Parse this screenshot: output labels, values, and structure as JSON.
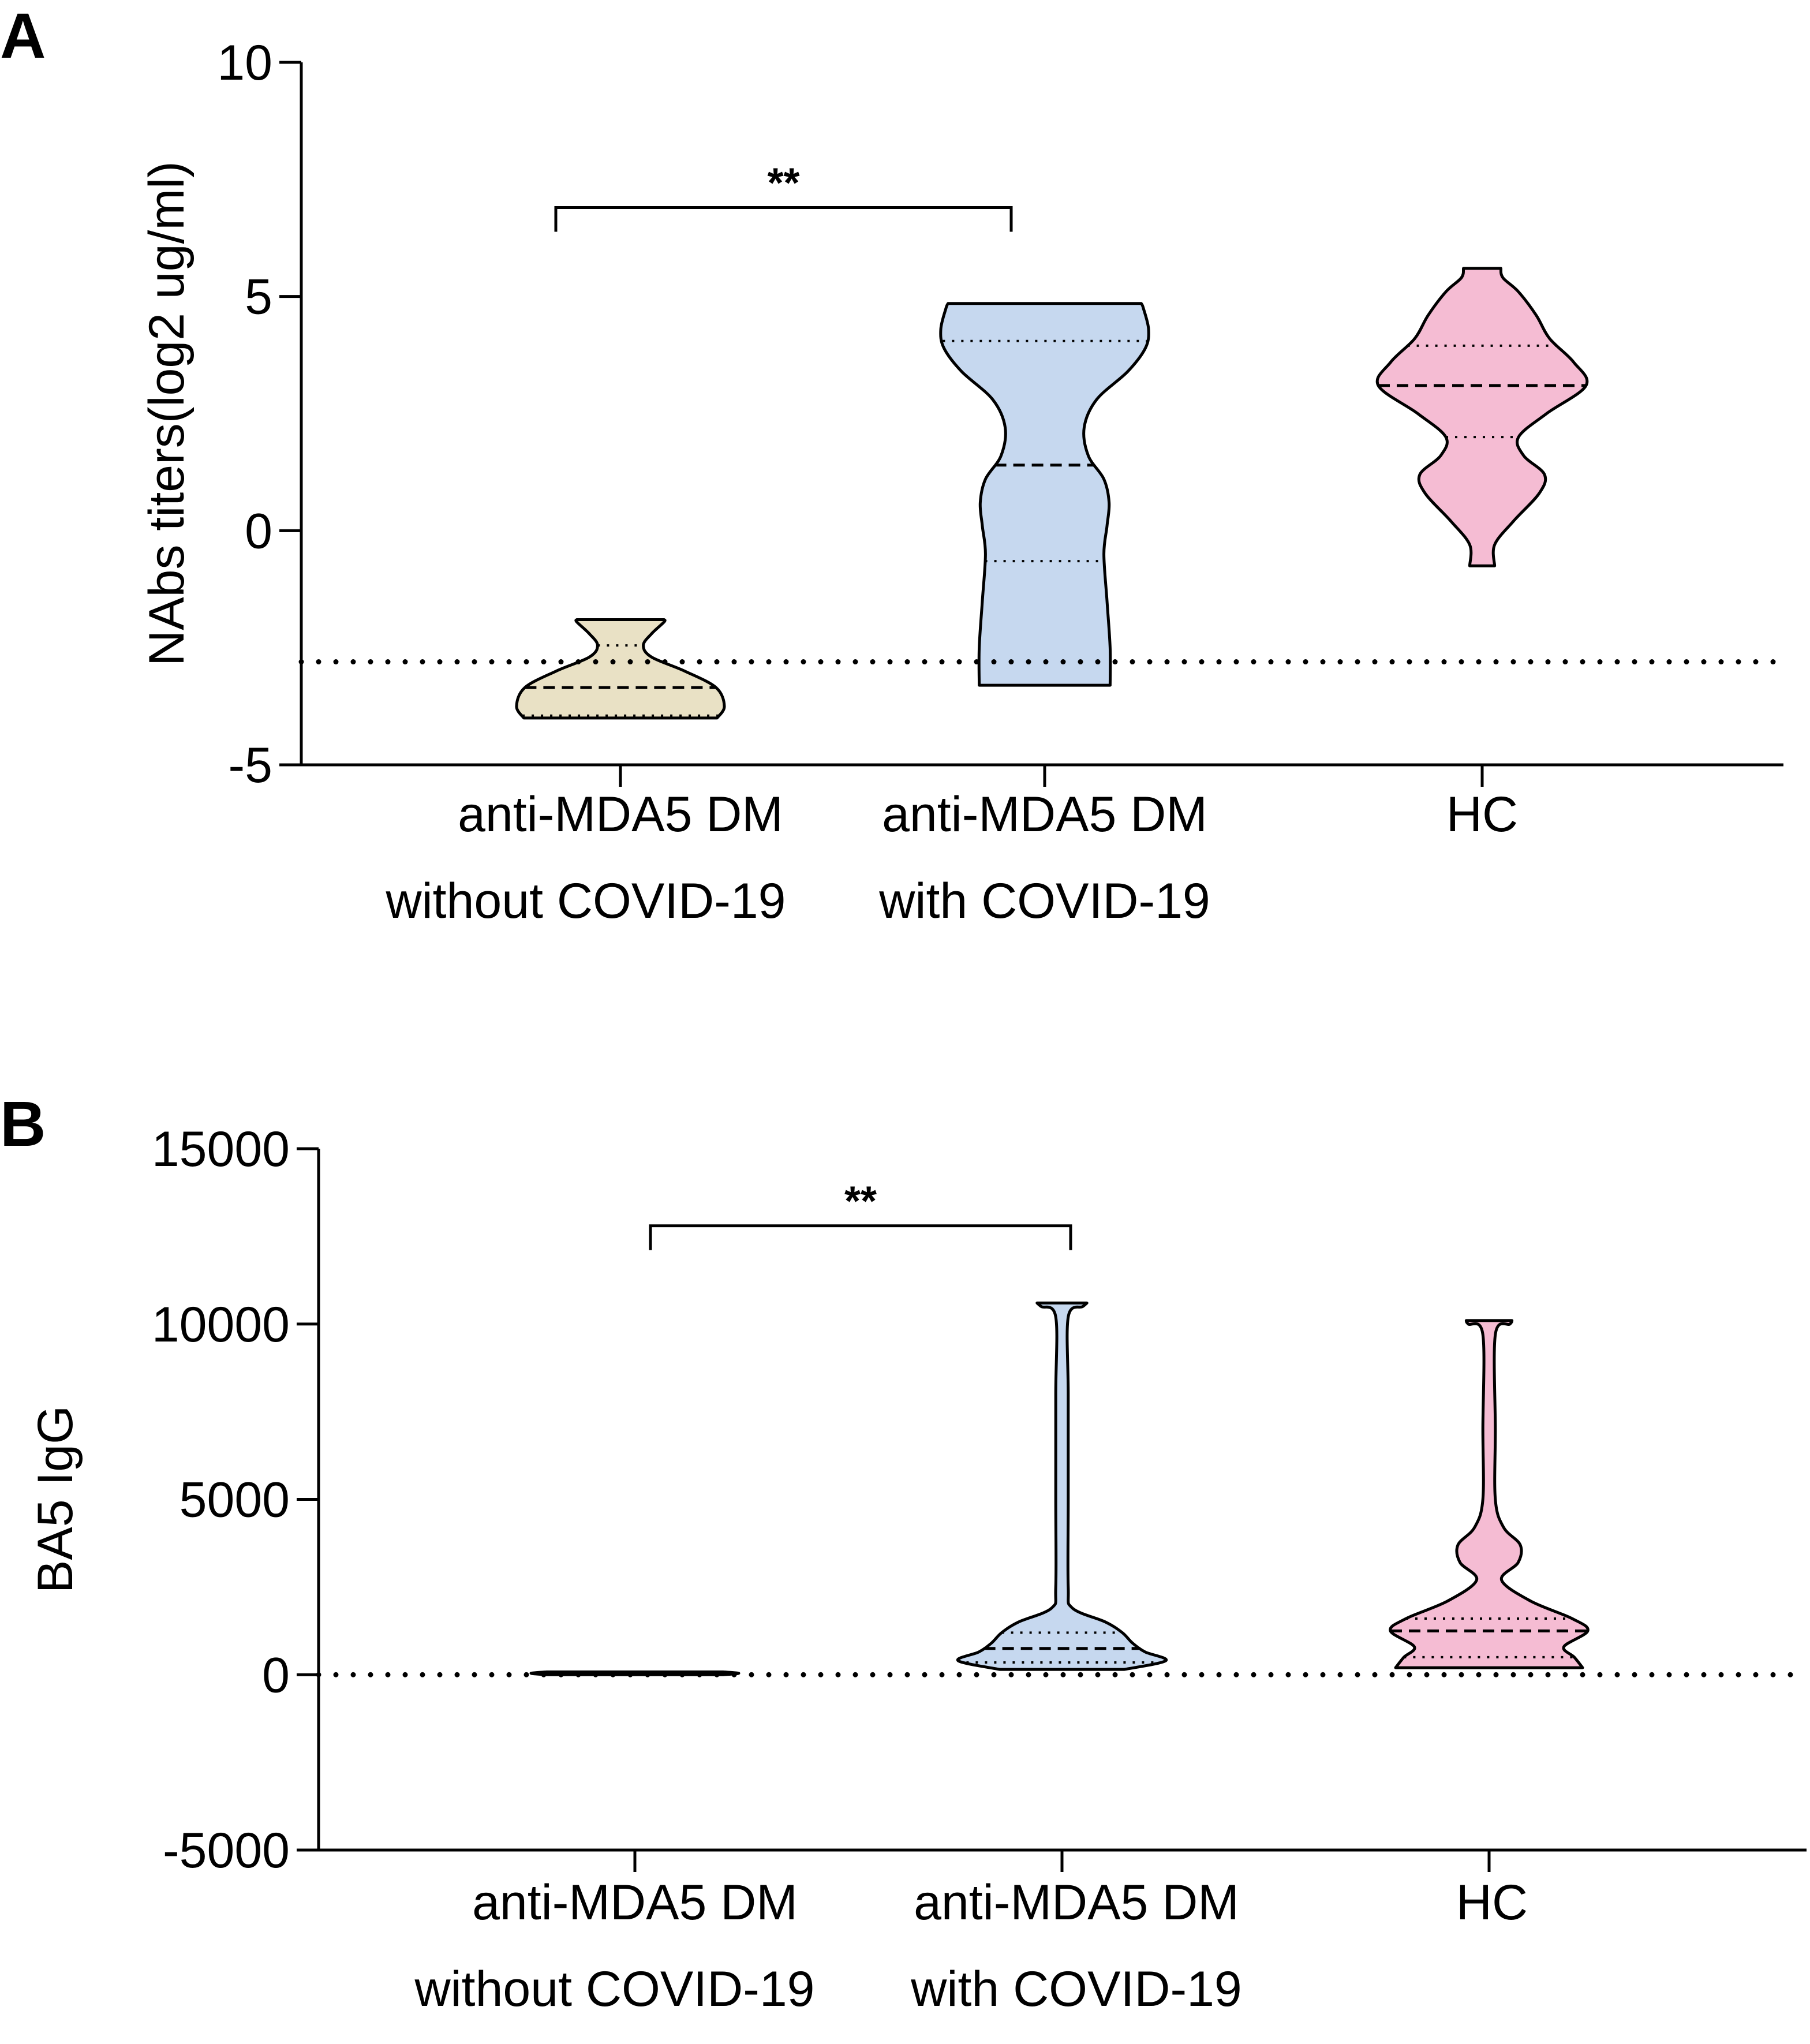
{
  "chart_data": [
    {
      "panel": "A",
      "type": "violin",
      "ylabel": "NAbs titers(log2 ug/ml)",
      "ylim": [
        -5,
        10
      ],
      "yticks": [
        10,
        5,
        0,
        -5
      ],
      "ytick_labels": [
        "10",
        "5",
        "0",
        "-5"
      ],
      "categories": [
        "anti-MDA5 DM\nwithout COVID-19",
        "anti-MDA5 DM\nwith COVID-19",
        "HC"
      ],
      "category_lines": [
        [
          "anti-MDA5 DM",
          "without COVID-19"
        ],
        [
          "anti-MDA5 DM",
          "with COVID-19"
        ],
        [
          "HC"
        ]
      ],
      "threshold_line": -2.8,
      "significance": [
        {
          "from": 0,
          "to": 1,
          "label": "**",
          "y": 6.9
        }
      ],
      "violins": [
        {
          "name": "anti-MDA5 DM without COVID-19",
          "color": "#e9e1c5",
          "min": -4.0,
          "max": -1.9,
          "median": -3.35,
          "q1": -3.95,
          "q3": -2.45,
          "profile": [
            [
              -4.0,
              0.93
            ],
            [
              -3.75,
              1.0
            ],
            [
              -3.35,
              0.92
            ],
            [
              -3.0,
              0.62
            ],
            [
              -2.7,
              0.3
            ],
            [
              -2.45,
              0.22
            ],
            [
              -2.2,
              0.3
            ],
            [
              -1.95,
              0.42
            ],
            [
              -1.9,
              0.42
            ]
          ]
        },
        {
          "name": "anti-MDA5 DM with COVID-19",
          "color": "#c6d8ef",
          "min": -3.3,
          "max": 4.85,
          "median": 1.4,
          "q1": -0.65,
          "q3": 4.05,
          "profile": [
            [
              -3.3,
              0.63
            ],
            [
              -2.5,
              0.63
            ],
            [
              -1.5,
              0.6
            ],
            [
              -0.5,
              0.57
            ],
            [
              0.1,
              0.6
            ],
            [
              0.6,
              0.62
            ],
            [
              1.1,
              0.57
            ],
            [
              1.6,
              0.42
            ],
            [
              2.2,
              0.38
            ],
            [
              2.8,
              0.5
            ],
            [
              3.4,
              0.8
            ],
            [
              3.9,
              0.97
            ],
            [
              4.3,
              1.0
            ],
            [
              4.75,
              0.95
            ],
            [
              4.85,
              0.93
            ]
          ]
        },
        {
          "name": "HC",
          "color": "#f5bcd3",
          "min": -0.75,
          "max": 5.6,
          "median": 3.1,
          "q1": 2.0,
          "q3": 3.95,
          "profile": [
            [
              -0.75,
              0.12
            ],
            [
              -0.3,
              0.12
            ],
            [
              0.2,
              0.3
            ],
            [
              0.8,
              0.55
            ],
            [
              1.2,
              0.6
            ],
            [
              1.6,
              0.4
            ],
            [
              2.0,
              0.35
            ],
            [
              2.5,
              0.62
            ],
            [
              3.1,
              1.0
            ],
            [
              3.6,
              0.88
            ],
            [
              4.1,
              0.65
            ],
            [
              4.6,
              0.52
            ],
            [
              5.1,
              0.35
            ],
            [
              5.4,
              0.2
            ],
            [
              5.6,
              0.18
            ]
          ]
        }
      ]
    },
    {
      "panel": "B",
      "type": "violin",
      "ylabel": "BA5 IgG",
      "ylim": [
        -5000,
        15000
      ],
      "yticks": [
        15000,
        10000,
        5000,
        0,
        -5000
      ],
      "ytick_labels": [
        "15000",
        "10000",
        "5000",
        "0",
        "-5000"
      ],
      "categories": [
        "anti-MDA5 DM\nwithout COVID-19",
        "anti-MDA5 DM\nwith COVID-19",
        "HC"
      ],
      "category_lines": [
        [
          "anti-MDA5 DM",
          "without COVID-19"
        ],
        [
          "anti-MDA5 DM",
          "with COVID-19"
        ],
        [
          "HC"
        ]
      ],
      "threshold_line": 0,
      "significance": [
        {
          "from": 0,
          "to": 1,
          "label": "**",
          "y": 12800
        }
      ],
      "violins": [
        {
          "name": "anti-MDA5 DM without COVID-19",
          "color": "#e9e1c5",
          "min": 0,
          "max": 80,
          "median": 40,
          "q1": 20,
          "q3": 60,
          "profile": [
            [
              0,
              0.85
            ],
            [
              40,
              1.0
            ],
            [
              80,
              0.85
            ]
          ]
        },
        {
          "name": "anti-MDA5 DM with COVID-19",
          "color": "#c6d8ef",
          "min": 150,
          "max": 10600,
          "median": 750,
          "q1": 350,
          "q3": 1200,
          "profile": [
            [
              150,
              0.6
            ],
            [
              400,
              1.0
            ],
            [
              650,
              0.8
            ],
            [
              900,
              0.68
            ],
            [
              1200,
              0.58
            ],
            [
              1500,
              0.42
            ],
            [
              1900,
              0.1
            ],
            [
              2500,
              0.06
            ],
            [
              5000,
              0.06
            ],
            [
              8000,
              0.06
            ],
            [
              10200,
              0.06
            ],
            [
              10500,
              0.2
            ],
            [
              10600,
              0.24
            ]
          ]
        },
        {
          "name": "HC",
          "color": "#f5bcd3",
          "min": 200,
          "max": 10100,
          "median": 1250,
          "q1": 500,
          "q3": 1600,
          "profile": [
            [
              200,
              0.9
            ],
            [
              500,
              0.82
            ],
            [
              800,
              0.72
            ],
            [
              1250,
              0.95
            ],
            [
              1600,
              0.8
            ],
            [
              2100,
              0.4
            ],
            [
              2700,
              0.12
            ],
            [
              3200,
              0.28
            ],
            [
              3700,
              0.3
            ],
            [
              4200,
              0.14
            ],
            [
              5000,
              0.06
            ],
            [
              7000,
              0.06
            ],
            [
              9700,
              0.06
            ],
            [
              10000,
              0.2
            ],
            [
              10100,
              0.22
            ]
          ]
        }
      ]
    }
  ]
}
